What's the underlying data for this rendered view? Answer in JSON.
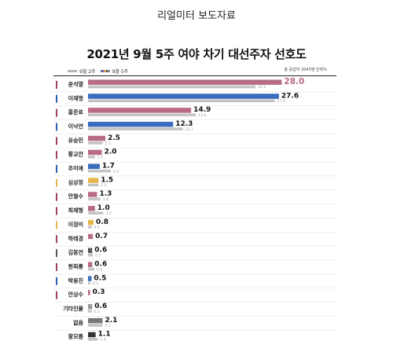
{
  "header": {
    "text": "리얼미터  보도자료"
  },
  "title": "2021년 9월 5주 여야 차기 대선주자 선호도",
  "legend": {
    "prev": {
      "label": "9월 2주",
      "color": "#b5b5b5"
    },
    "curr": {
      "label": "9월 5주",
      "colors": [
        "#3a6cc0",
        "#b86b84",
        "#e6b64a",
        "#555555",
        "#9a9a9a"
      ]
    }
  },
  "note": "총 응답자 2043명   단위%",
  "chart_data": {
    "type": "bar",
    "orientation": "horizontal",
    "title": "2021년 9월 5주 여야 차기 대선주자 선호도",
    "categories": [
      "윤석열",
      "이재명",
      "홍준표",
      "이낙연",
      "유승민",
      "황교안",
      "추미애",
      "심상정",
      "안철수",
      "최재형",
      "이정미",
      "하태경",
      "김동연",
      "원희룡",
      "박용진",
      "안상수",
      "기타인물",
      "없음",
      "잘모름"
    ],
    "series": [
      {
        "name": "9월 5주",
        "values": [
          28.0,
          27.6,
          14.9,
          12.3,
          2.5,
          2.0,
          1.7,
          1.5,
          1.3,
          1.0,
          0.8,
          0.7,
          0.6,
          0.6,
          0.5,
          0.3,
          0.6,
          2.1,
          1.1
        ]
      },
      {
        "name": "9월 2주",
        "values": [
          24.2,
          27.0,
          15.6,
          13.7,
          2.1,
          1.0,
          3.3,
          1.5,
          1.8,
          2.2,
          0.5,
          null,
          0.7,
          0.9,
          0.3,
          null,
          0.5,
          2.1,
          1.4
        ]
      }
    ],
    "curr_labels": [
      "28.0",
      "27.6",
      "14.9",
      "12.3",
      "2.5",
      "2.0",
      "1.7",
      "1.5",
      "1.3",
      "1.0",
      "0.8",
      "0.7",
      "0.6",
      "0.6",
      "0.5",
      "0.3",
      "0.6",
      "2.1",
      "1.1"
    ],
    "prev_labels": [
      "24.2",
      "27.0",
      "15.6",
      "13.7",
      "2.1",
      "1.0",
      "3.3",
      "1.5",
      "1.8",
      "2.2",
      "0.5",
      "",
      "0.7",
      "0.9",
      "0.3",
      "",
      "0.5",
      "2.1",
      "1.4"
    ],
    "curr_colors": [
      "#b86b84",
      "#3a6cc0",
      "#b86b84",
      "#3a6cc0",
      "#b86b84",
      "#b86b84",
      "#3a6cc0",
      "#e6b64a",
      "#b86b84",
      "#b86b84",
      "#e6b64a",
      "#b86b84",
      "#555555",
      "#b86b84",
      "#3a6cc0",
      "#b86b84",
      "#9a9a9a",
      "#777777",
      "#333333"
    ],
    "marker_colors": [
      "#a04060",
      "#2d5fb0",
      "#a04060",
      "#2d5fb0",
      "#a04060",
      "#a04060",
      "#2d5fb0",
      "#e6b64a",
      "#a04060",
      "#a04060",
      "#e6b64a",
      "#a04060",
      "#555555",
      "#a04060",
      "#2d5fb0",
      "#a04060",
      "",
      "",
      ""
    ],
    "highlight_first_label_color": "#b86b84",
    "prev_color": "#c4c4c4",
    "xlim": [
      0,
      30
    ]
  }
}
